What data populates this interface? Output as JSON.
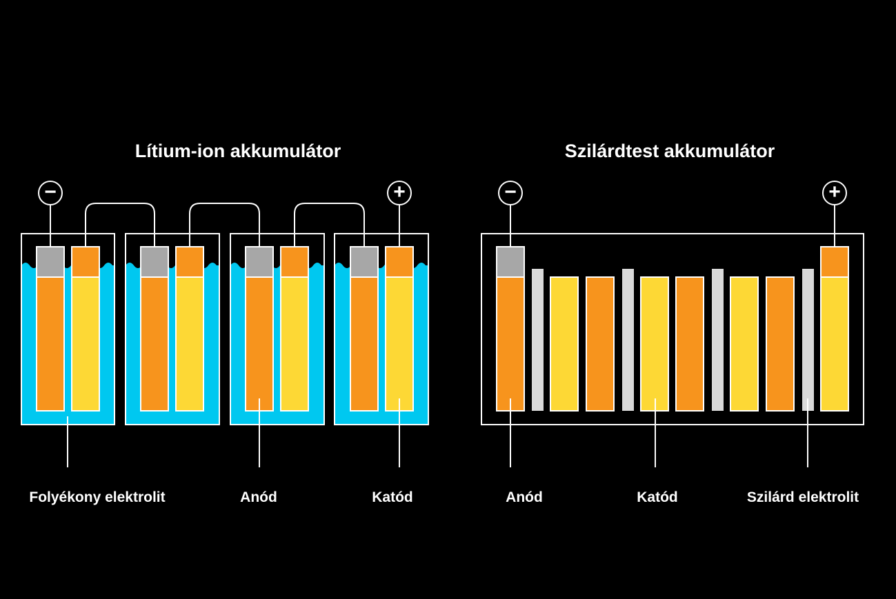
{
  "left_panel": {
    "title": "Lítium-ion akkumulátor",
    "negative_terminal": "−",
    "positive_terminal": "+",
    "labels": {
      "electrolyte": "Folyékony elektrolit",
      "anode": "Anód",
      "cathode": "Katód"
    },
    "cell_count": 4
  },
  "right_panel": {
    "title": "Szilárdtest akkumulátor",
    "negative_terminal": "−",
    "positive_terminal": "+",
    "labels": {
      "anode": "Anód",
      "cathode": "Katód",
      "electrolyte": "Szilárd elektrolit"
    }
  },
  "colors": {
    "background": "#000000",
    "outline": "#ffffff",
    "liquid_electrolyte": "#00c8f0",
    "anode": "#f7941d",
    "cathode": "#fdd835",
    "current_collector": "#a7a7a7",
    "solid_electrolyte": "#d9d9d9"
  }
}
